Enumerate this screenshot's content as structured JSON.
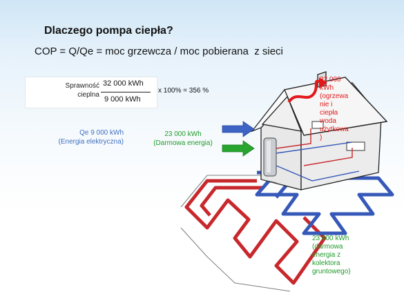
{
  "title": "Dlaczego pompa ciepła?",
  "formula": "COP = Q/Qe = moc grzewcza / moc pobierana  z sieci",
  "efficiency": {
    "label_line1": "Sprawność",
    "label_line2": "cieplna",
    "numerator": "32 000 kWh",
    "denominator": "9 000 kWh",
    "result": "x 100% = 356 %"
  },
  "electric_energy": {
    "line1": "Qe  9 000 kWh",
    "line2": "(Energia elektryczna)"
  },
  "free_energy": {
    "line1": "23 000 kWh",
    "line2": "(Darmowa energia)"
  },
  "heat_output": {
    "lines": [
      "32 000",
      "kWh",
      "(ogrzewa",
      "nie i",
      "ciepła",
      "woda",
      "użytkowa",
      ")"
    ]
  },
  "ground_energy": {
    "lines": [
      "23 000 kWh",
      "(darmowa",
      "energia z",
      "kolektora",
      "gruntowego)"
    ]
  },
  "colors": {
    "title_text": "#111111",
    "electric_text": "#3f6fc0",
    "free_text": "#1f9a2a",
    "heat_text": "#e21a1a",
    "arrow_blue": "#3d63c4",
    "arrow_green": "#27a52f",
    "pipe_red": "#c8282c",
    "pipe_blue": "#3658b8"
  },
  "icons": [
    "blue-arrow-icon",
    "green-arrow-icon",
    "red-heat-arrow-icon",
    "house-icon",
    "heat-pump-icon",
    "ground-loop-icon"
  ]
}
